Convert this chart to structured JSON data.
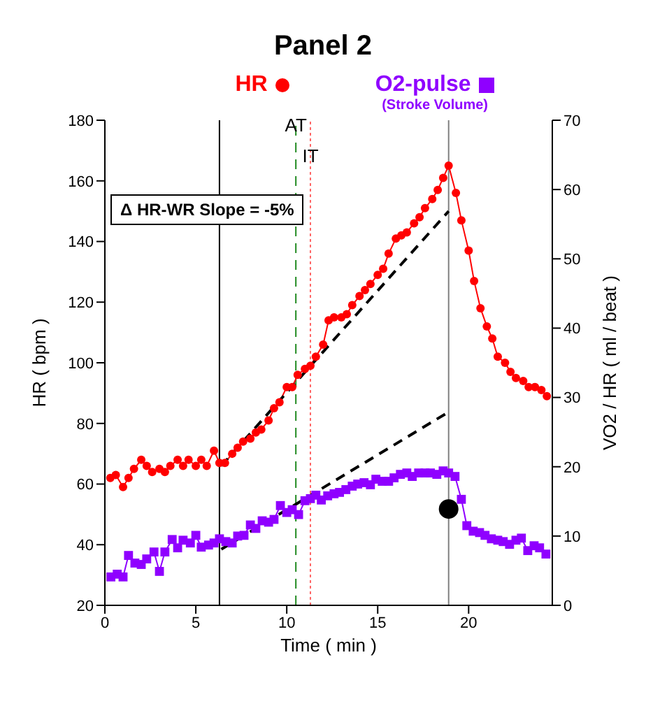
{
  "chart_data": {
    "type": "line",
    "title": "Panel 2",
    "xlabel": "Time ( min )",
    "ylabel": "HR ( bpm )",
    "y2label": "VO2 / HR ( ml / beat )",
    "xlim": [
      0,
      24.6
    ],
    "xticks": [
      0,
      5,
      10,
      15,
      20
    ],
    "ylim": [
      20,
      180
    ],
    "yticks": [
      20,
      40,
      60,
      80,
      100,
      120,
      140,
      160,
      180
    ],
    "y2lim": [
      0,
      70
    ],
    "y2ticks": [
      0,
      10,
      20,
      30,
      40,
      50,
      60,
      70
    ],
    "grid": false,
    "legend": "top",
    "annotations": [
      "(Stroke Volume)",
      "Δ HR-WR Slope = -5%"
    ],
    "ref_lines": [
      {
        "axis": "x",
        "value": 6.3,
        "label": null,
        "color": "#000000",
        "line_style": "solid"
      },
      {
        "axis": "x",
        "value": 10.5,
        "label": "AT",
        "color": "#228b22",
        "line_style": "dashed"
      },
      {
        "axis": "x",
        "value": 11.3,
        "label": "IT",
        "color": "#ff6666",
        "line_style": "dotted"
      },
      {
        "axis": "x",
        "value": 18.9,
        "label": null,
        "color": "#808080",
        "line_style": "solid"
      }
    ],
    "series": [
      {
        "name": "HR",
        "color": "#ff0000",
        "marker": "circle",
        "line_style": "solid",
        "x": [
          0.3,
          0.6,
          1.0,
          1.3,
          1.6,
          2.0,
          2.3,
          2.6,
          3.0,
          3.3,
          3.6,
          4.0,
          4.3,
          4.6,
          5.0,
          5.3,
          5.6,
          6.0,
          6.3,
          6.6,
          7.0,
          7.3,
          7.6,
          8.0,
          8.3,
          8.6,
          9.0,
          9.3,
          9.6,
          10.0,
          10.3,
          10.6,
          11.0,
          11.3,
          11.6,
          12.0,
          12.3,
          12.6,
          13.0,
          13.3,
          13.6,
          14.0,
          14.3,
          14.6,
          15.0,
          15.3,
          15.6,
          16.0,
          16.3,
          16.6,
          17.0,
          17.3,
          17.6,
          18.0,
          18.3,
          18.6,
          18.9,
          19.3,
          19.6,
          20.0,
          20.3,
          20.65,
          21.0,
          21.3,
          21.6,
          22.0,
          22.3,
          22.6,
          23.0,
          23.3,
          23.65,
          24.0,
          24.3
        ],
        "values": [
          62,
          63,
          59,
          62,
          65,
          68,
          66,
          64,
          65,
          64,
          66,
          68,
          66,
          68,
          66,
          68,
          66,
          71,
          67,
          67,
          70,
          72,
          74,
          75,
          77,
          78,
          81,
          85,
          87,
          92,
          92,
          96,
          98,
          99,
          102,
          106,
          114,
          115,
          115,
          116,
          119,
          122,
          124,
          126,
          129,
          131,
          136,
          141,
          142,
          143,
          146,
          148,
          151,
          154,
          157,
          161,
          165,
          156,
          147,
          137,
          127,
          118,
          112,
          108,
          102,
          100,
          97,
          95,
          94,
          92,
          92,
          91,
          89
        ]
      },
      {
        "name": "O2-pulse",
        "axis": "y2",
        "color": "#8f00ff",
        "marker": "square",
        "line_style": "solid",
        "x": [
          0.33,
          0.68,
          1.0,
          1.3,
          1.65,
          2.0,
          2.3,
          2.7,
          3.0,
          3.3,
          3.7,
          4.0,
          4.3,
          4.7,
          5.0,
          5.3,
          5.7,
          6.0,
          6.3,
          6.65,
          7.0,
          7.3,
          7.65,
          8.0,
          8.3,
          8.65,
          9.0,
          9.3,
          9.65,
          10.0,
          10.3,
          10.65,
          11.0,
          11.3,
          11.6,
          11.9,
          12.25,
          12.6,
          12.9,
          13.25,
          13.6,
          13.9,
          14.25,
          14.6,
          14.9,
          15.25,
          15.6,
          15.9,
          16.25,
          16.6,
          16.9,
          17.25,
          17.6,
          17.9,
          18.25,
          18.6,
          18.9,
          19.25,
          19.6,
          19.9,
          20.25,
          20.6,
          20.9,
          21.25,
          21.6,
          21.9,
          22.25,
          22.6,
          22.9,
          23.25,
          23.6,
          23.9,
          24.25
        ],
        "values": [
          4.1,
          4.5,
          4.1,
          7.2,
          6.1,
          5.9,
          6.7,
          7.7,
          4.9,
          7.7,
          9.5,
          8.3,
          9.4,
          9.0,
          10.1,
          8.4,
          8.7,
          9.0,
          9.6,
          9.2,
          9.0,
          10.0,
          10.1,
          11.6,
          11.1,
          12.2,
          12.0,
          12.4,
          14.4,
          13.4,
          13.8,
          13.1,
          15.1,
          15.4,
          15.9,
          15.2,
          15.8,
          16.1,
          16.3,
          16.7,
          17.2,
          17.5,
          17.7,
          17.4,
          18.2,
          17.9,
          17.9,
          18.4,
          18.9,
          19.1,
          18.6,
          19.1,
          19.1,
          19.1,
          18.9,
          19.4,
          19.1,
          18.6,
          15.3,
          11.5,
          10.7,
          10.5,
          10.1,
          9.6,
          9.4,
          9.2,
          8.8,
          9.4,
          9.7,
          7.9,
          8.6,
          8.3,
          7.4
        ]
      },
      {
        "type": "line",
        "color": "#000000",
        "marker": "none",
        "line_style": "dashed",
        "x": [
          6.4,
          18.9
        ],
        "values": [
          66,
          150
        ]
      },
      {
        "type": "line",
        "axis": "y2",
        "color": "#000000",
        "marker": "none",
        "line_style": "dashed",
        "x": [
          6.4,
          18.9
        ],
        "values": [
          8.1,
          27.9
        ]
      },
      {
        "type": "scatter",
        "axis": "y2",
        "color": "#000000",
        "marker": "circle",
        "x": [
          18.9
        ],
        "values": [
          13.9
        ]
      }
    ]
  }
}
